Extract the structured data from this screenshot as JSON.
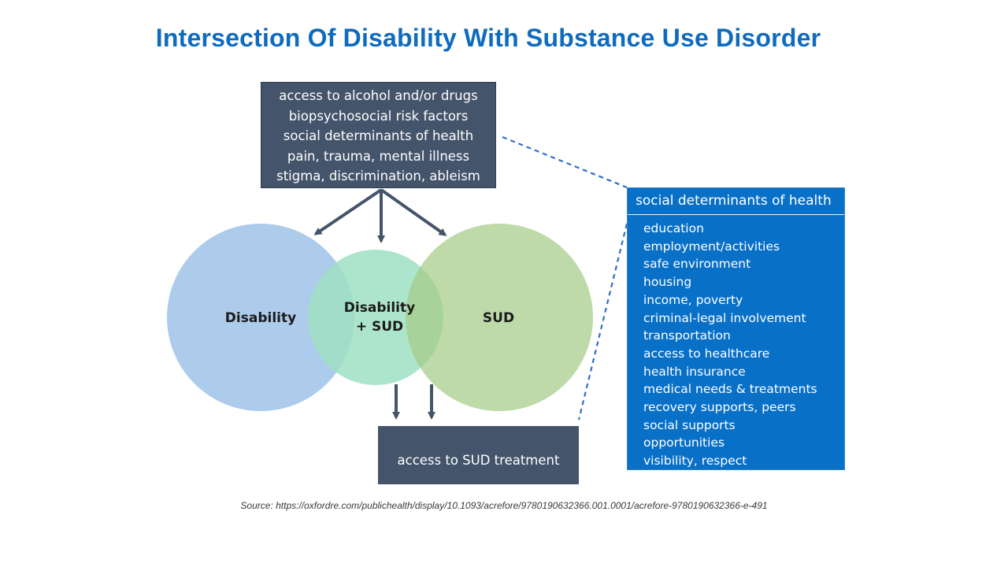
{
  "title": "Intersection Of Disability With Substance Use Disorder",
  "factors_box": {
    "lines": [
      "access to alcohol and/or drugs",
      "biopsychosocial risk factors",
      "social determinants of health",
      "pain, trauma, mental illness",
      "stigma, discrimination, ableism"
    ]
  },
  "circles": {
    "disability": "Disability",
    "overlap_line1": "Disability",
    "overlap_line2": "+ SUD",
    "sud": "SUD"
  },
  "treatment_box": "access to SUD treatment",
  "sdoh_panel": {
    "header": "social determinants of health",
    "items": [
      "education",
      "employment/activities",
      "safe environment",
      "housing",
      "income, poverty",
      "criminal-legal involvement",
      "transportation",
      "access to healthcare",
      "health insurance",
      "medical needs & treatments",
      "recovery supports, peers",
      "social supports",
      "opportunities",
      "visibility, respect"
    ]
  },
  "source": "Source: https://oxfordre.com/publichealth/display/10.1093/acrefore/9780190632366.001.0001/acrefore-9780190632366-e-491",
  "colors": {
    "title": "#0e6bbd",
    "dark_box": "#44546a",
    "panel": "#0970c8",
    "disability_circle": "#a9c8ea",
    "overlap_circle": "#9fe0c3",
    "sud_circle": "#b6d79c",
    "arrow": "#44546a"
  }
}
